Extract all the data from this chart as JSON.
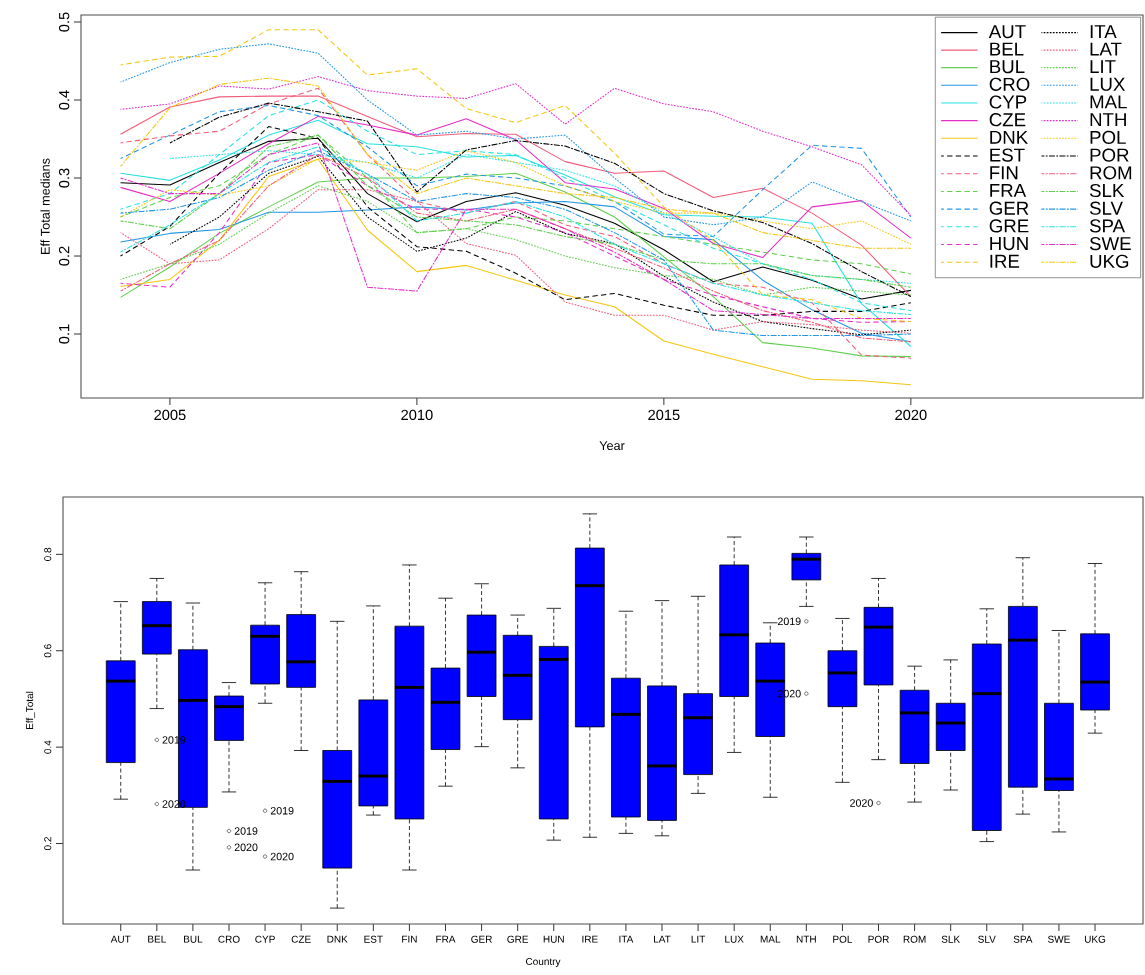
{
  "chart_data": [
    {
      "type": "line",
      "xlabel": "Year",
      "ylabel": "Eff Total medians",
      "x": [
        2004,
        2005,
        2006,
        2007,
        2008,
        2009,
        2010,
        2011,
        2012,
        2013,
        2014,
        2015,
        2016,
        2017,
        2018,
        2019,
        2020
      ],
      "xlim": [
        2003.2,
        2024.7
      ],
      "xticks": [
        2005,
        2010,
        2015,
        2020
      ],
      "ylim": [
        0.018,
        0.509
      ],
      "yticks": [
        0.1,
        0.2,
        0.3,
        0.4,
        0.5
      ],
      "legend": "top right",
      "series": [
        {
          "name": "AUT",
          "color": "#000000",
          "line_style": "solid",
          "values": [
            0.294,
            0.291,
            0.32,
            0.347,
            0.351,
            0.28,
            0.244,
            0.27,
            0.281,
            0.265,
            0.242,
            0.208,
            0.167,
            0.186,
            0.169,
            0.145,
            0.156
          ]
        },
        {
          "name": "BEL",
          "color": "#f25c7a",
          "line_style": "solid",
          "values": [
            0.356,
            0.391,
            0.404,
            0.405,
            0.405,
            0.379,
            0.353,
            0.357,
            0.356,
            0.321,
            0.306,
            0.309,
            0.275,
            0.287,
            0.255,
            0.214,
            0.148
          ]
        },
        {
          "name": "BUL",
          "color": "#61d04f",
          "line_style": "solid",
          "values": [
            0.147,
            0.186,
            0.229,
            0.263,
            0.295,
            0.3,
            0.3,
            0.302,
            0.306,
            0.282,
            0.25,
            0.199,
            0.148,
            0.089,
            0.082,
            0.072,
            0.071
          ]
        },
        {
          "name": "CRO",
          "color": "#2297e6",
          "line_style": "solid",
          "values": [
            0.218,
            0.229,
            0.234,
            0.256,
            0.256,
            0.259,
            0.263,
            0.259,
            0.268,
            0.27,
            0.263,
            0.225,
            0.221,
            0.169,
            0.131,
            0.101,
            0.09
          ]
        },
        {
          "name": "CYP",
          "color": "#28e2e5",
          "line_style": "solid",
          "values": [
            0.306,
            0.297,
            0.323,
            0.355,
            0.374,
            0.344,
            0.34,
            0.327,
            0.329,
            0.304,
            0.276,
            0.253,
            0.251,
            0.25,
            0.242,
            0.139,
            0.084
          ]
        },
        {
          "name": "CZE",
          "color": "#e62ec8",
          "line_style": "solid",
          "values": [
            0.288,
            0.27,
            0.306,
            0.344,
            0.379,
            0.368,
            0.355,
            0.376,
            0.349,
            0.294,
            0.286,
            0.261,
            0.216,
            0.198,
            0.263,
            0.271,
            0.223
          ]
        },
        {
          "name": "DNK",
          "color": "#f5c710",
          "line_style": "solid",
          "values": [
            0.161,
            0.17,
            0.22,
            0.302,
            0.324,
            0.233,
            0.18,
            0.188,
            0.169,
            0.15,
            0.135,
            0.091,
            0.074,
            0.058,
            0.042,
            0.04,
            0.035
          ]
        },
        {
          "name": "EST",
          "color": "#000000",
          "line_style": "dashed",
          "values": [
            0.2,
            0.238,
            0.306,
            0.366,
            0.351,
            0.263,
            0.212,
            0.206,
            0.178,
            0.144,
            0.152,
            0.137,
            0.124,
            0.124,
            0.129,
            0.129,
            0.14
          ]
        },
        {
          "name": "FIN",
          "color": "#f25c7a",
          "line_style": "dashed",
          "values": [
            0.345,
            0.354,
            0.36,
            0.395,
            0.415,
            0.33,
            0.27,
            0.255,
            0.27,
            0.24,
            0.225,
            0.19,
            0.165,
            0.16,
            0.14,
            0.073,
            0.069
          ]
        },
        {
          "name": "FRA",
          "color": "#61d04f",
          "line_style": "dashed",
          "values": [
            0.25,
            0.275,
            0.29,
            0.33,
            0.355,
            0.3,
            0.23,
            0.235,
            0.25,
            0.245,
            0.235,
            0.225,
            0.215,
            0.205,
            0.195,
            0.19,
            0.177
          ]
        },
        {
          "name": "GER",
          "color": "#2297e6",
          "line_style": "dashed",
          "values": [
            0.325,
            0.355,
            0.385,
            0.393,
            0.38,
            0.34,
            0.29,
            0.305,
            0.3,
            0.29,
            0.27,
            0.228,
            0.225,
            0.285,
            0.342,
            0.338,
            0.25
          ]
        },
        {
          "name": "GRE",
          "color": "#28e2e5",
          "line_style": "dashed",
          "values": [
            0.26,
            0.28,
            0.33,
            0.38,
            0.4,
            0.36,
            0.33,
            0.335,
            0.33,
            0.3,
            0.27,
            0.24,
            0.21,
            0.19,
            0.17,
            0.14,
            0.13
          ]
        },
        {
          "name": "HUN",
          "color": "#e62ec8",
          "line_style": "dashed",
          "values": [
            0.165,
            0.16,
            0.23,
            0.32,
            0.33,
            0.29,
            0.26,
            0.26,
            0.25,
            0.23,
            0.2,
            0.17,
            0.15,
            0.135,
            0.12,
            0.115,
            0.116
          ]
        },
        {
          "name": "IRE",
          "color": "#f5c710",
          "line_style": "dashed",
          "values": [
            0.445,
            0.455,
            0.456,
            0.49,
            0.49,
            0.432,
            0.44,
            0.389,
            0.371,
            0.393,
            0.332,
            0.263,
            0.22,
            0.15,
            0.144,
            0.12,
            0.116
          ]
        },
        {
          "name": "ITA",
          "color": "#000000",
          "line_style": "dotted",
          "values": [
            null,
            0.215,
            0.25,
            0.306,
            0.328,
            0.25,
            0.206,
            0.223,
            0.257,
            0.229,
            0.216,
            0.174,
            0.141,
            0.116,
            0.107,
            0.099,
            0.105
          ]
        },
        {
          "name": "LAT",
          "color": "#f25c7a",
          "line_style": "dotted",
          "values": [
            0.23,
            0.19,
            0.195,
            0.235,
            0.285,
            0.285,
            0.27,
            0.216,
            0.201,
            0.141,
            0.124,
            0.124,
            0.105,
            0.116,
            0.112,
            0.105,
            0.101
          ]
        },
        {
          "name": "LIT",
          "color": "#61d04f",
          "line_style": "dotted",
          "values": [
            0.17,
            0.19,
            0.215,
            0.255,
            0.29,
            0.27,
            0.23,
            0.235,
            0.221,
            0.2,
            0.185,
            0.175,
            0.17,
            0.15,
            0.16,
            0.155,
            0.15
          ]
        },
        {
          "name": "LUX",
          "color": "#2297e6",
          "line_style": "dotted",
          "values": [
            0.423,
            0.448,
            0.465,
            0.472,
            0.46,
            0.4,
            0.355,
            0.36,
            0.35,
            0.355,
            0.3,
            0.25,
            0.24,
            0.25,
            0.295,
            0.27,
            0.245
          ]
        },
        {
          "name": "MAL",
          "color": "#28e2e5",
          "line_style": "dotted",
          "values": [
            null,
            0.325,
            0.33,
            0.335,
            0.33,
            0.32,
            0.3,
            0.33,
            0.32,
            0.31,
            0.29,
            0.255,
            0.225,
            0.19,
            0.175,
            0.17,
            0.165
          ]
        },
        {
          "name": "NTH",
          "color": "#e62ec8",
          "line_style": "dotted",
          "values": [
            0.388,
            0.395,
            0.418,
            0.414,
            0.43,
            0.412,
            0.405,
            0.402,
            0.421,
            0.369,
            0.415,
            0.395,
            0.385,
            0.36,
            0.34,
            0.317,
            0.252
          ]
        },
        {
          "name": "POL",
          "color": "#f5c710",
          "line_style": "dotted",
          "values": [
            0.25,
            0.285,
            0.278,
            0.29,
            0.325,
            0.32,
            0.31,
            0.335,
            0.32,
            0.29,
            0.27,
            0.255,
            0.255,
            0.245,
            0.235,
            0.245,
            0.215
          ]
        },
        {
          "name": "POR",
          "color": "#000000",
          "line_style": "dashdot",
          "values": [
            null,
            0.345,
            0.378,
            0.396,
            0.385,
            0.373,
            0.282,
            0.336,
            0.348,
            0.341,
            0.319,
            0.28,
            0.258,
            0.243,
            0.216,
            0.18,
            0.148
          ]
        },
        {
          "name": "ROM",
          "color": "#f25c7a",
          "line_style": "dashdot",
          "values": [
            0.155,
            0.19,
            0.22,
            0.29,
            0.33,
            0.3,
            0.255,
            0.245,
            0.26,
            0.235,
            0.21,
            0.185,
            0.155,
            0.13,
            0.115,
            0.095,
            0.09
          ]
        },
        {
          "name": "SLK",
          "color": "#61d04f",
          "line_style": "dashdot",
          "values": [
            0.245,
            0.235,
            0.28,
            0.34,
            0.355,
            0.29,
            0.25,
            0.245,
            0.24,
            0.225,
            0.215,
            0.195,
            0.19,
            0.19,
            0.175,
            0.17,
            0.16
          ]
        },
        {
          "name": "SLV",
          "color": "#2297e6",
          "line_style": "dashdot",
          "values": [
            0.255,
            0.26,
            0.275,
            0.31,
            0.335,
            0.305,
            0.27,
            0.28,
            0.275,
            0.26,
            0.23,
            0.195,
            0.105,
            0.098,
            0.098,
            0.098,
            0.1
          ]
        },
        {
          "name": "SPA",
          "color": "#28e2e5",
          "line_style": "dashdot",
          "values": [
            0.205,
            0.24,
            0.28,
            0.32,
            0.34,
            0.305,
            0.245,
            0.255,
            0.27,
            0.25,
            0.215,
            0.19,
            0.165,
            0.15,
            0.14,
            0.13,
            0.125
          ]
        },
        {
          "name": "SWE",
          "color": "#e62ec8",
          "line_style": "dashdot",
          "values": [
            0.3,
            0.28,
            0.28,
            0.33,
            0.345,
            0.16,
            0.155,
            0.26,
            0.26,
            0.235,
            0.205,
            0.17,
            0.13,
            0.125,
            0.12,
            0.12,
            0.12
          ]
        },
        {
          "name": "UKG",
          "color": "#f5c710",
          "line_style": "dashdot",
          "values": [
            0.315,
            0.39,
            0.42,
            0.428,
            0.418,
            0.33,
            0.28,
            0.3,
            0.29,
            0.28,
            0.275,
            0.26,
            0.255,
            0.23,
            0.22,
            0.21,
            0.21
          ]
        }
      ]
    },
    {
      "type": "box",
      "xlabel": "Country",
      "ylabel": "Eff_Total",
      "color": "#0000ff",
      "categories": [
        "AUT",
        "BEL",
        "BUL",
        "CRO",
        "CYP",
        "CZE",
        "DNK",
        "EST",
        "FIN",
        "FRA",
        "GER",
        "GRE",
        "HUN",
        "IRE",
        "ITA",
        "LAT",
        "LIT",
        "LUX",
        "MAL",
        "NTH",
        "POL",
        "POR",
        "ROM",
        "SLK",
        "SLV",
        "SPA",
        "SWE",
        "UKG"
      ],
      "ylim": [
        0.033,
        0.919
      ],
      "yticks": [
        0.2,
        0.4,
        0.6,
        0.8
      ],
      "boxes": [
        {
          "low": 0.292,
          "q1": 0.368,
          "median": 0.537,
          "q3": 0.579,
          "high": 0.702
        },
        {
          "low": 0.48,
          "q1": 0.593,
          "median": 0.652,
          "q3": 0.702,
          "high": 0.75,
          "outliers": [
            0.415,
            0.282
          ]
        },
        {
          "low": 0.145,
          "q1": 0.275,
          "median": 0.497,
          "q3": 0.602,
          "high": 0.699
        },
        {
          "low": 0.307,
          "q1": 0.414,
          "median": 0.484,
          "q3": 0.506,
          "high": 0.534,
          "outliers": [
            0.226,
            0.192
          ]
        },
        {
          "low": 0.491,
          "q1": 0.531,
          "median": 0.63,
          "q3": 0.653,
          "high": 0.741,
          "outliers": [
            0.268,
            0.173
          ]
        },
        {
          "low": 0.393,
          "q1": 0.524,
          "median": 0.577,
          "q3": 0.675,
          "high": 0.764
        },
        {
          "low": 0.066,
          "q1": 0.149,
          "median": 0.329,
          "q3": 0.393,
          "high": 0.661
        },
        {
          "low": 0.259,
          "q1": 0.278,
          "median": 0.34,
          "q3": 0.498,
          "high": 0.693
        },
        {
          "low": 0.145,
          "q1": 0.251,
          "median": 0.524,
          "q3": 0.651,
          "high": 0.778
        },
        {
          "low": 0.319,
          "q1": 0.395,
          "median": 0.493,
          "q3": 0.564,
          "high": 0.709
        },
        {
          "low": 0.401,
          "q1": 0.505,
          "median": 0.597,
          "q3": 0.674,
          "high": 0.739
        },
        {
          "low": 0.357,
          "q1": 0.457,
          "median": 0.549,
          "q3": 0.632,
          "high": 0.674
        },
        {
          "low": 0.207,
          "q1": 0.251,
          "median": 0.582,
          "q3": 0.609,
          "high": 0.688
        },
        {
          "low": 0.213,
          "q1": 0.442,
          "median": 0.735,
          "q3": 0.813,
          "high": 0.884
        },
        {
          "low": 0.221,
          "q1": 0.255,
          "median": 0.468,
          "q3": 0.543,
          "high": 0.682
        },
        {
          "low": 0.216,
          "q1": 0.248,
          "median": 0.361,
          "q3": 0.527,
          "high": 0.704
        },
        {
          "low": 0.304,
          "q1": 0.343,
          "median": 0.461,
          "q3": 0.511,
          "high": 0.713
        },
        {
          "low": 0.389,
          "q1": 0.505,
          "median": 0.633,
          "q3": 0.778,
          "high": 0.836
        },
        {
          "low": 0.296,
          "q1": 0.422,
          "median": 0.537,
          "q3": 0.616,
          "high": 0.658
        },
        {
          "low": 0.692,
          "q1": 0.747,
          "median": 0.79,
          "q3": 0.802,
          "high": 0.836,
          "outliers": [
            0.661,
            0.511
          ]
        },
        {
          "low": 0.327,
          "q1": 0.484,
          "median": 0.554,
          "q3": 0.6,
          "high": 0.667
        },
        {
          "low": 0.374,
          "q1": 0.529,
          "median": 0.649,
          "q3": 0.69,
          "high": 0.75,
          "outliers": [
            0.284
          ]
        },
        {
          "low": 0.286,
          "q1": 0.366,
          "median": 0.471,
          "q3": 0.518,
          "high": 0.568
        },
        {
          "low": 0.311,
          "q1": 0.393,
          "median": 0.45,
          "q3": 0.491,
          "high": 0.581
        },
        {
          "low": 0.204,
          "q1": 0.227,
          "median": 0.511,
          "q3": 0.614,
          "high": 0.687
        },
        {
          "low": 0.261,
          "q1": 0.317,
          "median": 0.622,
          "q3": 0.692,
          "high": 0.793
        },
        {
          "low": 0.224,
          "q1": 0.31,
          "median": 0.334,
          "q3": 0.491,
          "high": 0.642
        },
        {
          "low": 0.429,
          "q1": 0.477,
          "median": 0.535,
          "q3": 0.635,
          "high": 0.781
        }
      ],
      "annotations": [
        "2019",
        "2020",
        "2019",
        "2020",
        "2019",
        "2020",
        "2019",
        "2020",
        "2020"
      ]
    }
  ]
}
